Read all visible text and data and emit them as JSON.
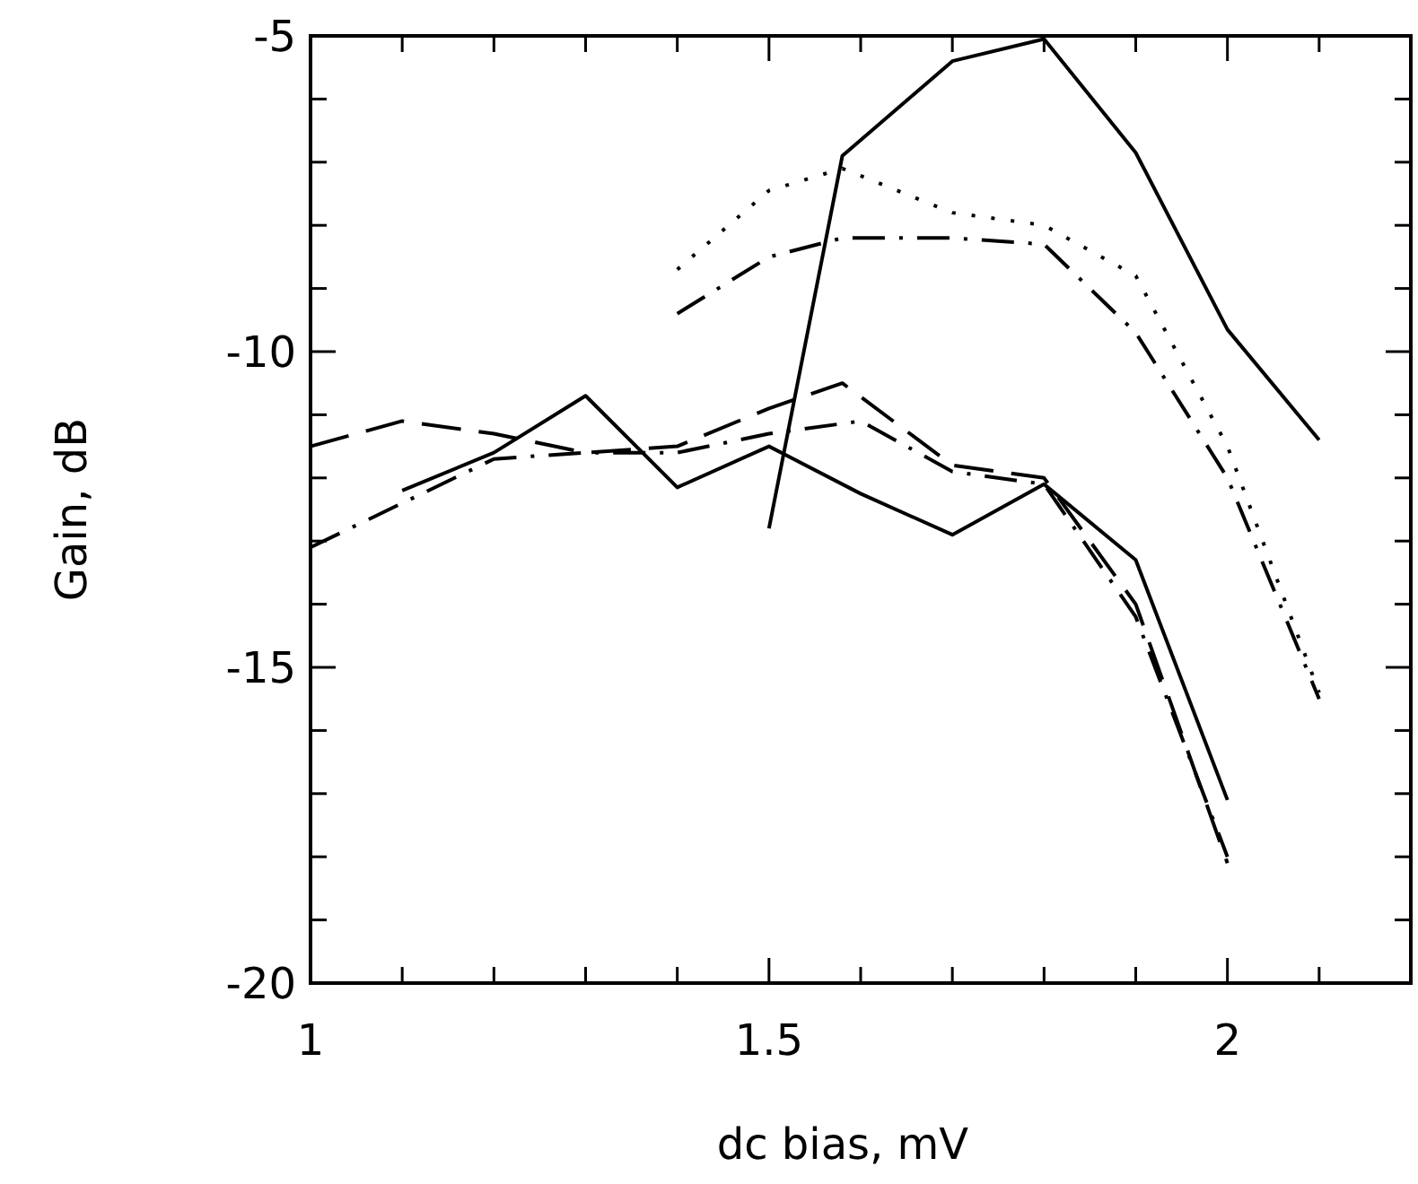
{
  "chart_data": {
    "type": "line",
    "xlabel": "dc bias, mV",
    "ylabel": "Gain, dB",
    "xlim": [
      1,
      2.2
    ],
    "ylim": [
      -20,
      -5
    ],
    "xticks": [
      1,
      {
        "value": 1.1,
        "label": null
      },
      {
        "value": 1.2,
        "label": null
      },
      {
        "value": 1.3,
        "label": null
      },
      {
        "value": 1.4,
        "label": null
      },
      1.5,
      {
        "value": 1.6,
        "label": null
      },
      {
        "value": 1.7,
        "label": null
      },
      {
        "value": 1.8,
        "label": null
      },
      {
        "value": 1.9,
        "label": null
      },
      2,
      {
        "value": 2.1,
        "label": null
      }
    ],
    "yticks": [
      -20,
      {
        "value": -19,
        "label": null
      },
      {
        "value": -18,
        "label": null
      },
      {
        "value": -17,
        "label": null
      },
      {
        "value": -16,
        "label": null
      },
      -15,
      {
        "value": -14,
        "label": null
      },
      {
        "value": -13,
        "label": null
      },
      {
        "value": -12,
        "label": null
      },
      {
        "value": -11,
        "label": null
      },
      -10,
      {
        "value": -9,
        "label": null
      },
      {
        "value": -8,
        "label": null
      },
      {
        "value": -7,
        "label": null
      },
      {
        "value": -6,
        "label": null
      },
      -5
    ],
    "marker": "none",
    "series": [
      {
        "color": "#000000",
        "line_style": "solid",
        "x": [
          1.5,
          1.58,
          1.7,
          1.8,
          1.9,
          2.0,
          2.1
        ],
        "values": [
          -12.8,
          -6.9,
          -5.4,
          -5.05,
          -6.85,
          -9.65,
          -11.4
        ]
      },
      {
        "color": "#000000",
        "line_style": "solid",
        "x": [
          1.1,
          1.2,
          1.3,
          1.4,
          1.5,
          1.6,
          1.7,
          1.8,
          1.9,
          2.0
        ],
        "values": [
          -12.2,
          -11.6,
          -10.7,
          -12.15,
          -11.5,
          -12.25,
          -12.9,
          -12.1,
          -13.3,
          -17.1
        ]
      },
      {
        "color": "#000000",
        "line_style": "dashed",
        "x": [
          1.0,
          1.1,
          1.2,
          1.3,
          1.4,
          1.5,
          1.58,
          1.7,
          1.8,
          1.9,
          2.0
        ],
        "values": [
          -11.5,
          -11.1,
          -11.3,
          -11.6,
          -11.5,
          -10.9,
          -10.5,
          -11.8,
          -12.0,
          -14.0,
          -18.1
        ]
      },
      {
        "color": "#000000",
        "line_style": "dashdot",
        "x": [
          1.0,
          1.1,
          1.2,
          1.3,
          1.4,
          1.5,
          1.6,
          1.7,
          1.8,
          1.9,
          2.0
        ],
        "values": [
          -13.1,
          -12.4,
          -11.7,
          -11.6,
          -11.6,
          -11.3,
          -11.1,
          -11.9,
          -12.1,
          -14.2,
          -18.0
        ]
      },
      {
        "color": "#000000",
        "line_style": "dotted",
        "x": [
          1.4,
          1.5,
          1.58,
          1.7,
          1.8,
          1.9,
          2.0,
          2.1
        ],
        "values": [
          -8.7,
          -7.45,
          -7.1,
          -7.8,
          -8.0,
          -8.8,
          -11.5,
          -15.4
        ]
      },
      {
        "color": "#000000",
        "line_style": "dashdot",
        "x": [
          1.4,
          1.5,
          1.58,
          1.7,
          1.8,
          1.9,
          2.0,
          2.1
        ],
        "values": [
          -9.4,
          -8.5,
          -8.2,
          -8.2,
          -8.3,
          -9.7,
          -12.0,
          -15.5
        ]
      }
    ]
  }
}
